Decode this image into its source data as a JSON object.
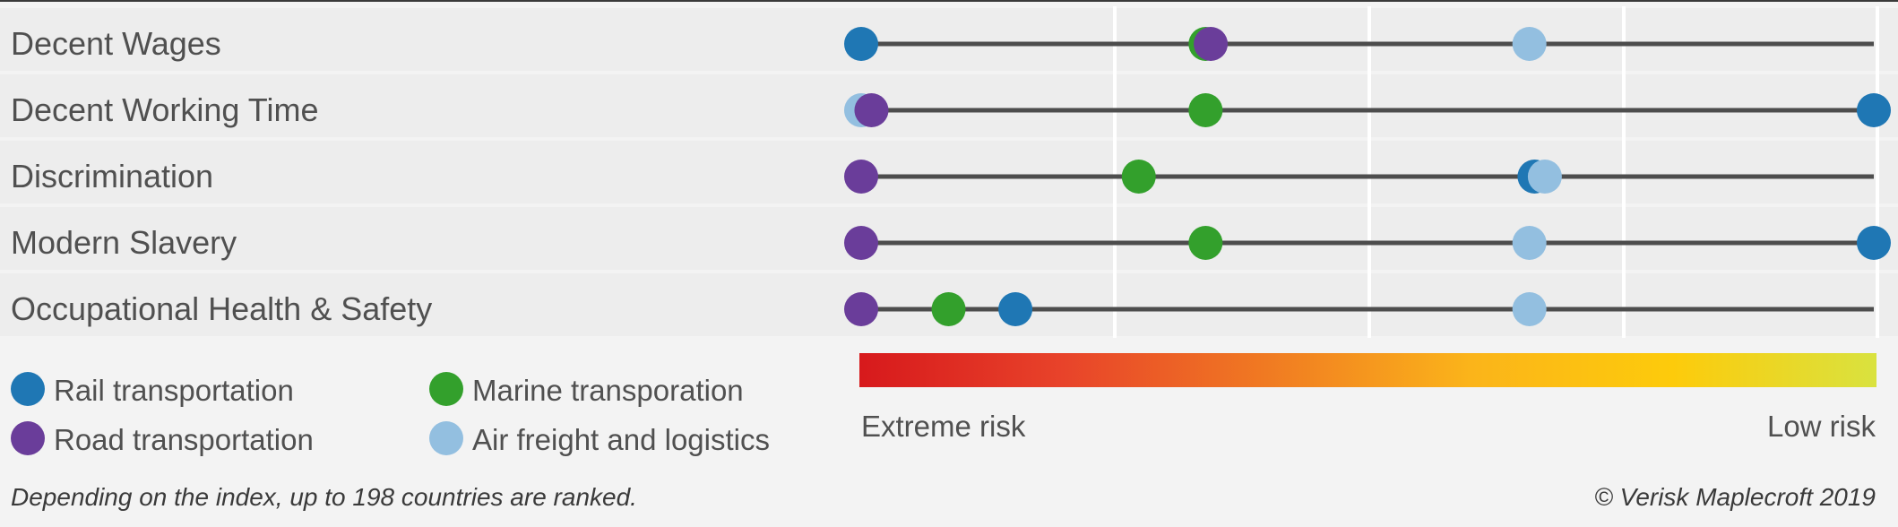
{
  "chart_data": {
    "type": "scatter",
    "subtype": "dot-risk-strip",
    "scale": {
      "min": 1,
      "max": 198,
      "direction": "extreme risk to low risk",
      "left_label": "Extreme risk",
      "right_label": "Low risk",
      "gradient_colors": [
        "#d7191c",
        "#e8432a",
        "#f07a22",
        "#fbb41a",
        "#fdcb0b",
        "#d9e23f"
      ]
    },
    "categories": [
      "Decent Wages",
      "Decent Working Time",
      "Discrimination",
      "Modern Slavery",
      "Occupational Health & Safety"
    ],
    "series": [
      {
        "key": "rail",
        "name": "Rail transportation",
        "color": "#1f77b4",
        "values": [
          1,
          198,
          132,
          198,
          31
        ]
      },
      {
        "key": "marine",
        "name": "Marine transporation",
        "color": "#33a02c",
        "values": [
          68,
          68,
          55,
          68,
          18
        ]
      },
      {
        "key": "road",
        "name": "Road transportation",
        "color": "#6a3d9a",
        "values": [
          69,
          3,
          1,
          1,
          1
        ]
      },
      {
        "key": "air",
        "name": "Air freight and logistics",
        "color": "#93bfe0",
        "values": [
          131,
          1,
          134,
          131,
          131
        ]
      }
    ],
    "legend": {
      "placement": "bottom-left",
      "order": [
        "rail",
        "marine",
        "road",
        "air"
      ]
    },
    "footnote": "Depending on the index, up to 198 countries are ranked.",
    "credit": "© Verisk Maplecroft 2019"
  }
}
